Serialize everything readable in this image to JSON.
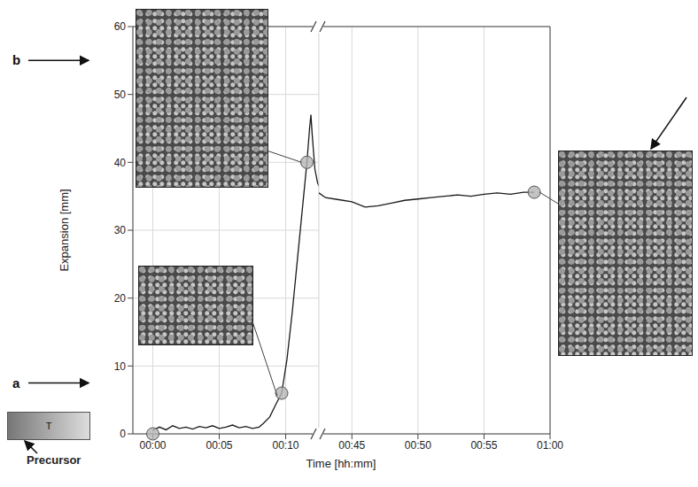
{
  "chart_data": [
    {
      "type": "line",
      "y_label": "Expansion [mm]",
      "x_label": "Time [hh:mm]",
      "xlim": [
        -1.5,
        12.5
      ],
      "xticks": [
        {
          "value": 0,
          "label": "00:00"
        },
        {
          "value": 5,
          "label": "00:05"
        },
        {
          "value": 10,
          "label": "00:10"
        }
      ],
      "ylim": [
        0,
        60
      ],
      "yticks": [
        0,
        10,
        20,
        30,
        40,
        50,
        60
      ],
      "grid": true,
      "color": "#1a1a1a",
      "x": [
        0,
        0.5,
        1,
        1.5,
        2,
        2.5,
        3,
        3.5,
        4,
        4.5,
        5,
        5.5,
        6,
        6.5,
        7,
        7.5,
        8,
        8.3,
        8.8,
        9.3,
        9.7,
        10.1,
        10.5,
        10.9,
        11.3,
        11.6,
        11.8,
        11.9,
        12.0,
        12.2,
        12.4,
        12.5
      ],
      "values": [
        0.5,
        1,
        0.6,
        1.2,
        0.8,
        1,
        0.7,
        1.1,
        0.9,
        1.2,
        0.8,
        1,
        1.3,
        0.9,
        1.1,
        0.8,
        1,
        1.5,
        2.5,
        4.5,
        6,
        11,
        18,
        26,
        34,
        40,
        45,
        47,
        44,
        39,
        37,
        36.5
      ],
      "highlights": [
        {
          "x": 0,
          "y": 0
        },
        {
          "x": 9.7,
          "y": 6
        },
        {
          "x": 11.6,
          "y": 40
        }
      ],
      "annotations": [
        {
          "text": "a",
          "y": 7.5
        },
        {
          "text": "b",
          "y": 55
        }
      ],
      "precursor": {
        "label": "Precursor",
        "mark": "T"
      }
    },
    {
      "type": "line",
      "xlim": [
        42.5,
        60
      ],
      "xticks": [
        {
          "value": 45,
          "label": "00:45"
        },
        {
          "value": 50,
          "label": "00:50"
        },
        {
          "value": 55,
          "label": "00:55"
        },
        {
          "value": 60,
          "label": "01:00"
        }
      ],
      "ylim": [
        0,
        60
      ],
      "yticks": [
        0,
        10,
        20,
        30,
        40,
        50,
        60
      ],
      "grid": true,
      "color": "#1a1a1a",
      "x": [
        42.5,
        43,
        44,
        45,
        46,
        47,
        48,
        49,
        50,
        51,
        52,
        53,
        54,
        55,
        56,
        57,
        58,
        58.8
      ],
      "values": [
        35.5,
        34.8,
        34.5,
        34.2,
        33.4,
        33.6,
        34,
        34.4,
        34.6,
        34.8,
        35,
        35.2,
        35,
        35.3,
        35.5,
        35.3,
        35.6,
        35.6
      ],
      "highlights": [
        {
          "x": 58.8,
          "y": 35.6
        }
      ]
    }
  ]
}
